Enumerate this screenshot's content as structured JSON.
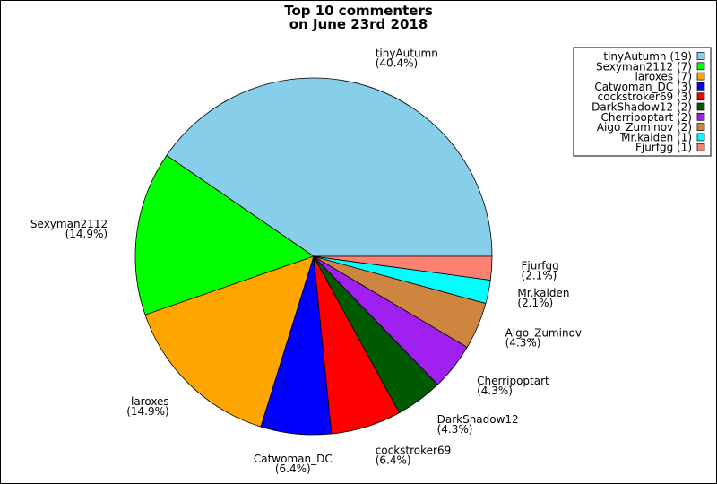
{
  "chart_data": {
    "type": "pie",
    "title": [
      "Top 10 commenters",
      "on June 23rd 2018"
    ],
    "start_angle_deg": 0,
    "direction": "counterclockwise",
    "legend_placement": "top-right",
    "slices": [
      {
        "name": "tinyAutumn",
        "value": 19,
        "percent": "(40.4%)",
        "legend": "tinyAutumn (19)",
        "color": "#87CEEB"
      },
      {
        "name": "Sexyman2112",
        "value": 7,
        "percent": "(14.9%)",
        "legend": "Sexyman2112 (7)",
        "color": "#00FF00"
      },
      {
        "name": "laroxes",
        "value": 7,
        "percent": "(14.9%)",
        "legend": "laroxes (7)",
        "color": "#FFA500"
      },
      {
        "name": "Catwoman_DC",
        "value": 3,
        "percent": "(6.4%)",
        "legend": "Catwoman_DC (3)",
        "color": "#0000FF"
      },
      {
        "name": "cockstroker69",
        "value": 3,
        "percent": "(6.4%)",
        "legend": "cockstroker69 (3)",
        "color": "#FF0000"
      },
      {
        "name": "DarkShadow12",
        "value": 2,
        "percent": "(4.3%)",
        "legend": "DarkShadow12 (2)",
        "color": "#005A00"
      },
      {
        "name": "Cherripoptart",
        "value": 2,
        "percent": "(4.3%)",
        "legend": "Cherripoptart (2)",
        "color": "#A020F0"
      },
      {
        "name": "Aigo_Zuminov",
        "value": 2,
        "percent": "(4.3%)",
        "legend": "Aigo_Zuminov (2)",
        "color": "#CD853F"
      },
      {
        "name": "Mr.kaiden",
        "value": 1,
        "percent": "(2.1%)",
        "legend": "Mr.kaiden (1)",
        "color": "#00FFFF"
      },
      {
        "name": "Fjurfgg",
        "value": 1,
        "percent": "(2.1%)",
        "legend": "Fjurfgg (1)",
        "color": "#FA8072"
      }
    ]
  }
}
